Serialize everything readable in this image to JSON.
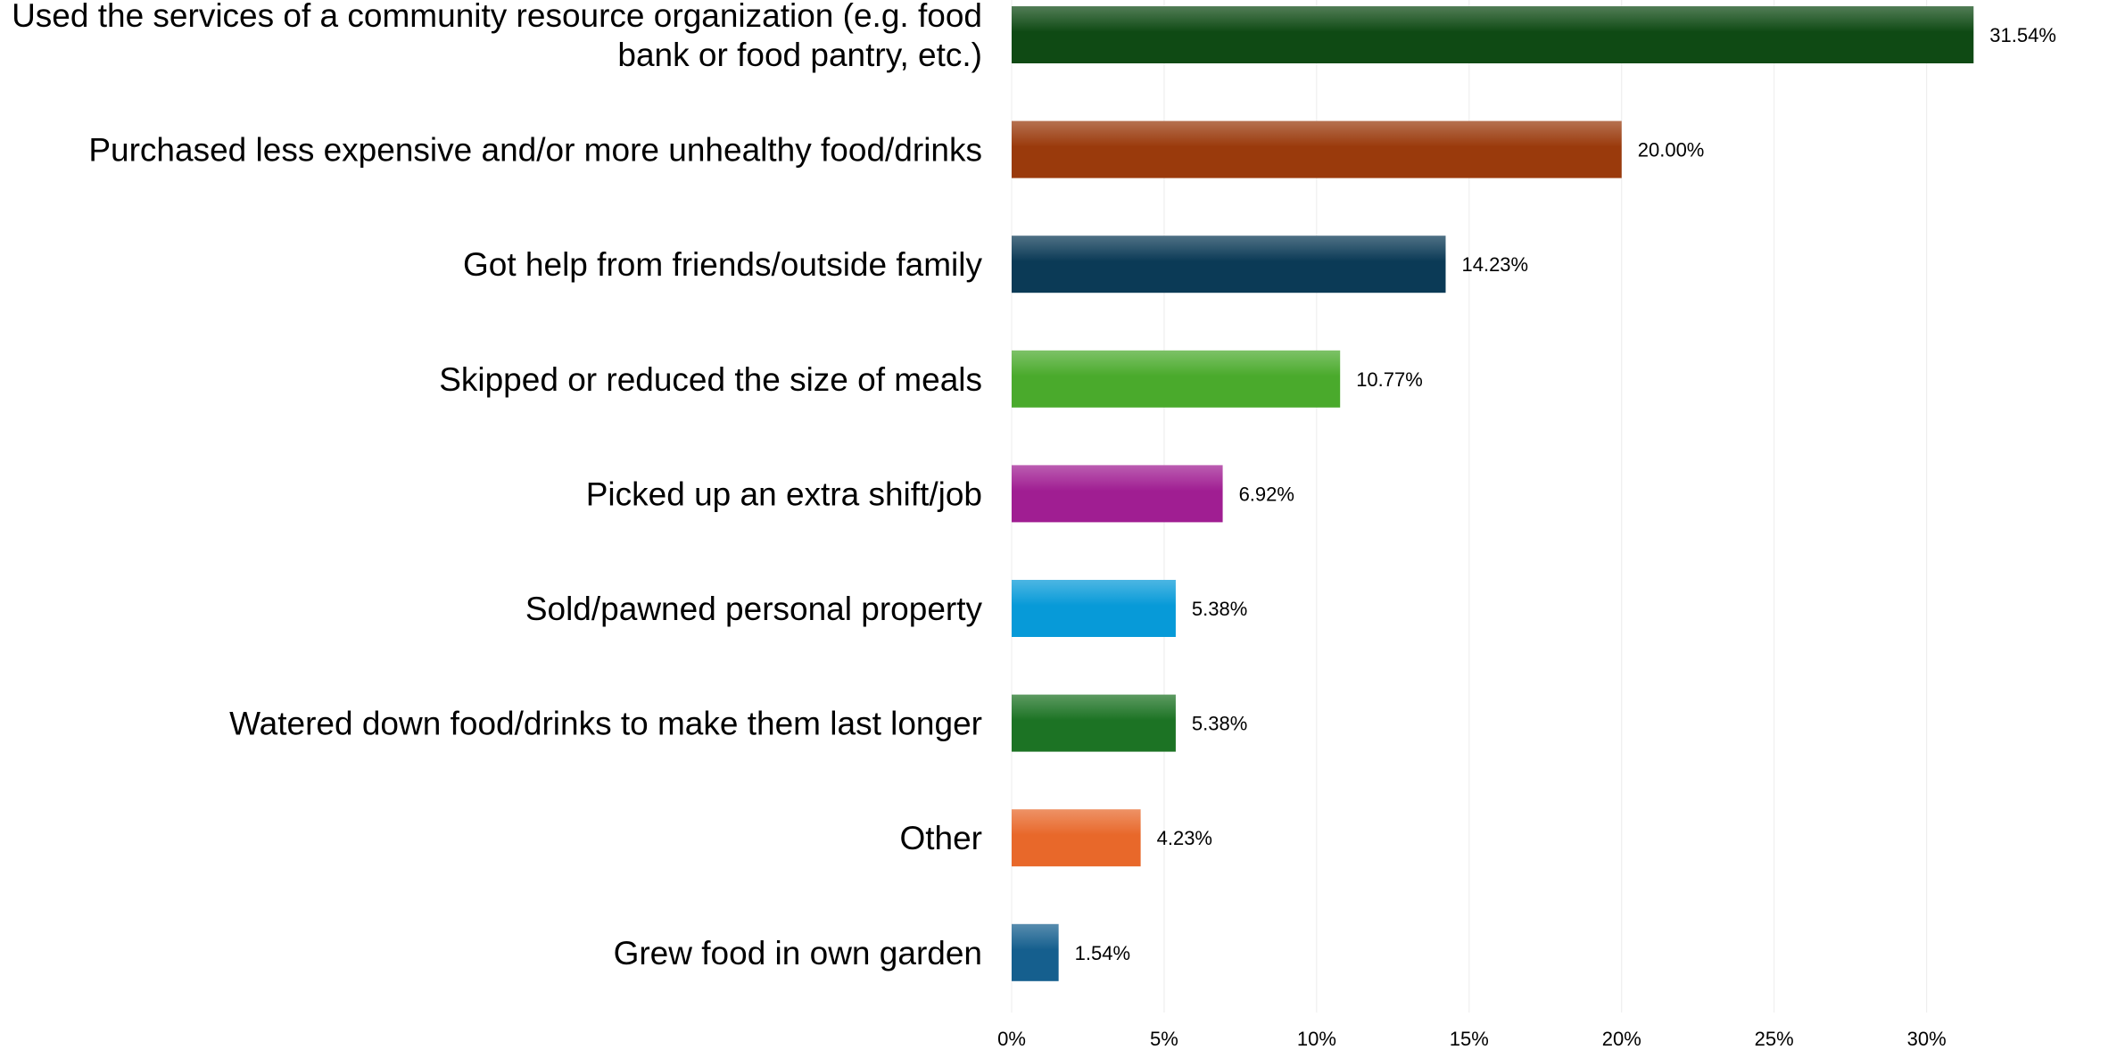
{
  "chart_data": {
    "type": "bar",
    "orientation": "horizontal",
    "categories": [
      [
        "Used the services of a community resource organization (e.g. food",
        "bank or food pantry, etc.)"
      ],
      [
        "Purchased less expensive and/or more unhealthy food/drinks"
      ],
      [
        "Got help from friends/outside family"
      ],
      [
        "Skipped or reduced the size of meals"
      ],
      [
        "Picked up an extra shift/job"
      ],
      [
        "Sold/pawned personal property"
      ],
      [
        "Watered down food/drinks to make them last longer"
      ],
      [
        "Other"
      ],
      [
        "Grew food in own garden"
      ]
    ],
    "values": [
      31.54,
      20.0,
      14.23,
      10.77,
      6.92,
      5.38,
      5.38,
      4.23,
      1.54
    ],
    "value_labels": [
      "31.54%",
      "20.00%",
      "14.23%",
      "10.77%",
      "6.92%",
      "5.38%",
      "5.38%",
      "4.23%",
      "1.54%"
    ],
    "colors": [
      "#0f4a14",
      "#9a3a0c",
      "#0b3a56",
      "#4aaa2c",
      "#a01e92",
      "#079ad8",
      "#1c7324",
      "#e8682a",
      "#155f8e"
    ],
    "xlim": [
      0,
      32
    ],
    "xticks": [
      0,
      5,
      10,
      15,
      20,
      25,
      30
    ],
    "xtick_labels": [
      "0%",
      "5%",
      "10%",
      "15%",
      "20%",
      "25%",
      "30%"
    ],
    "grid": true,
    "title": "",
    "xlabel": "",
    "ylabel": ""
  }
}
